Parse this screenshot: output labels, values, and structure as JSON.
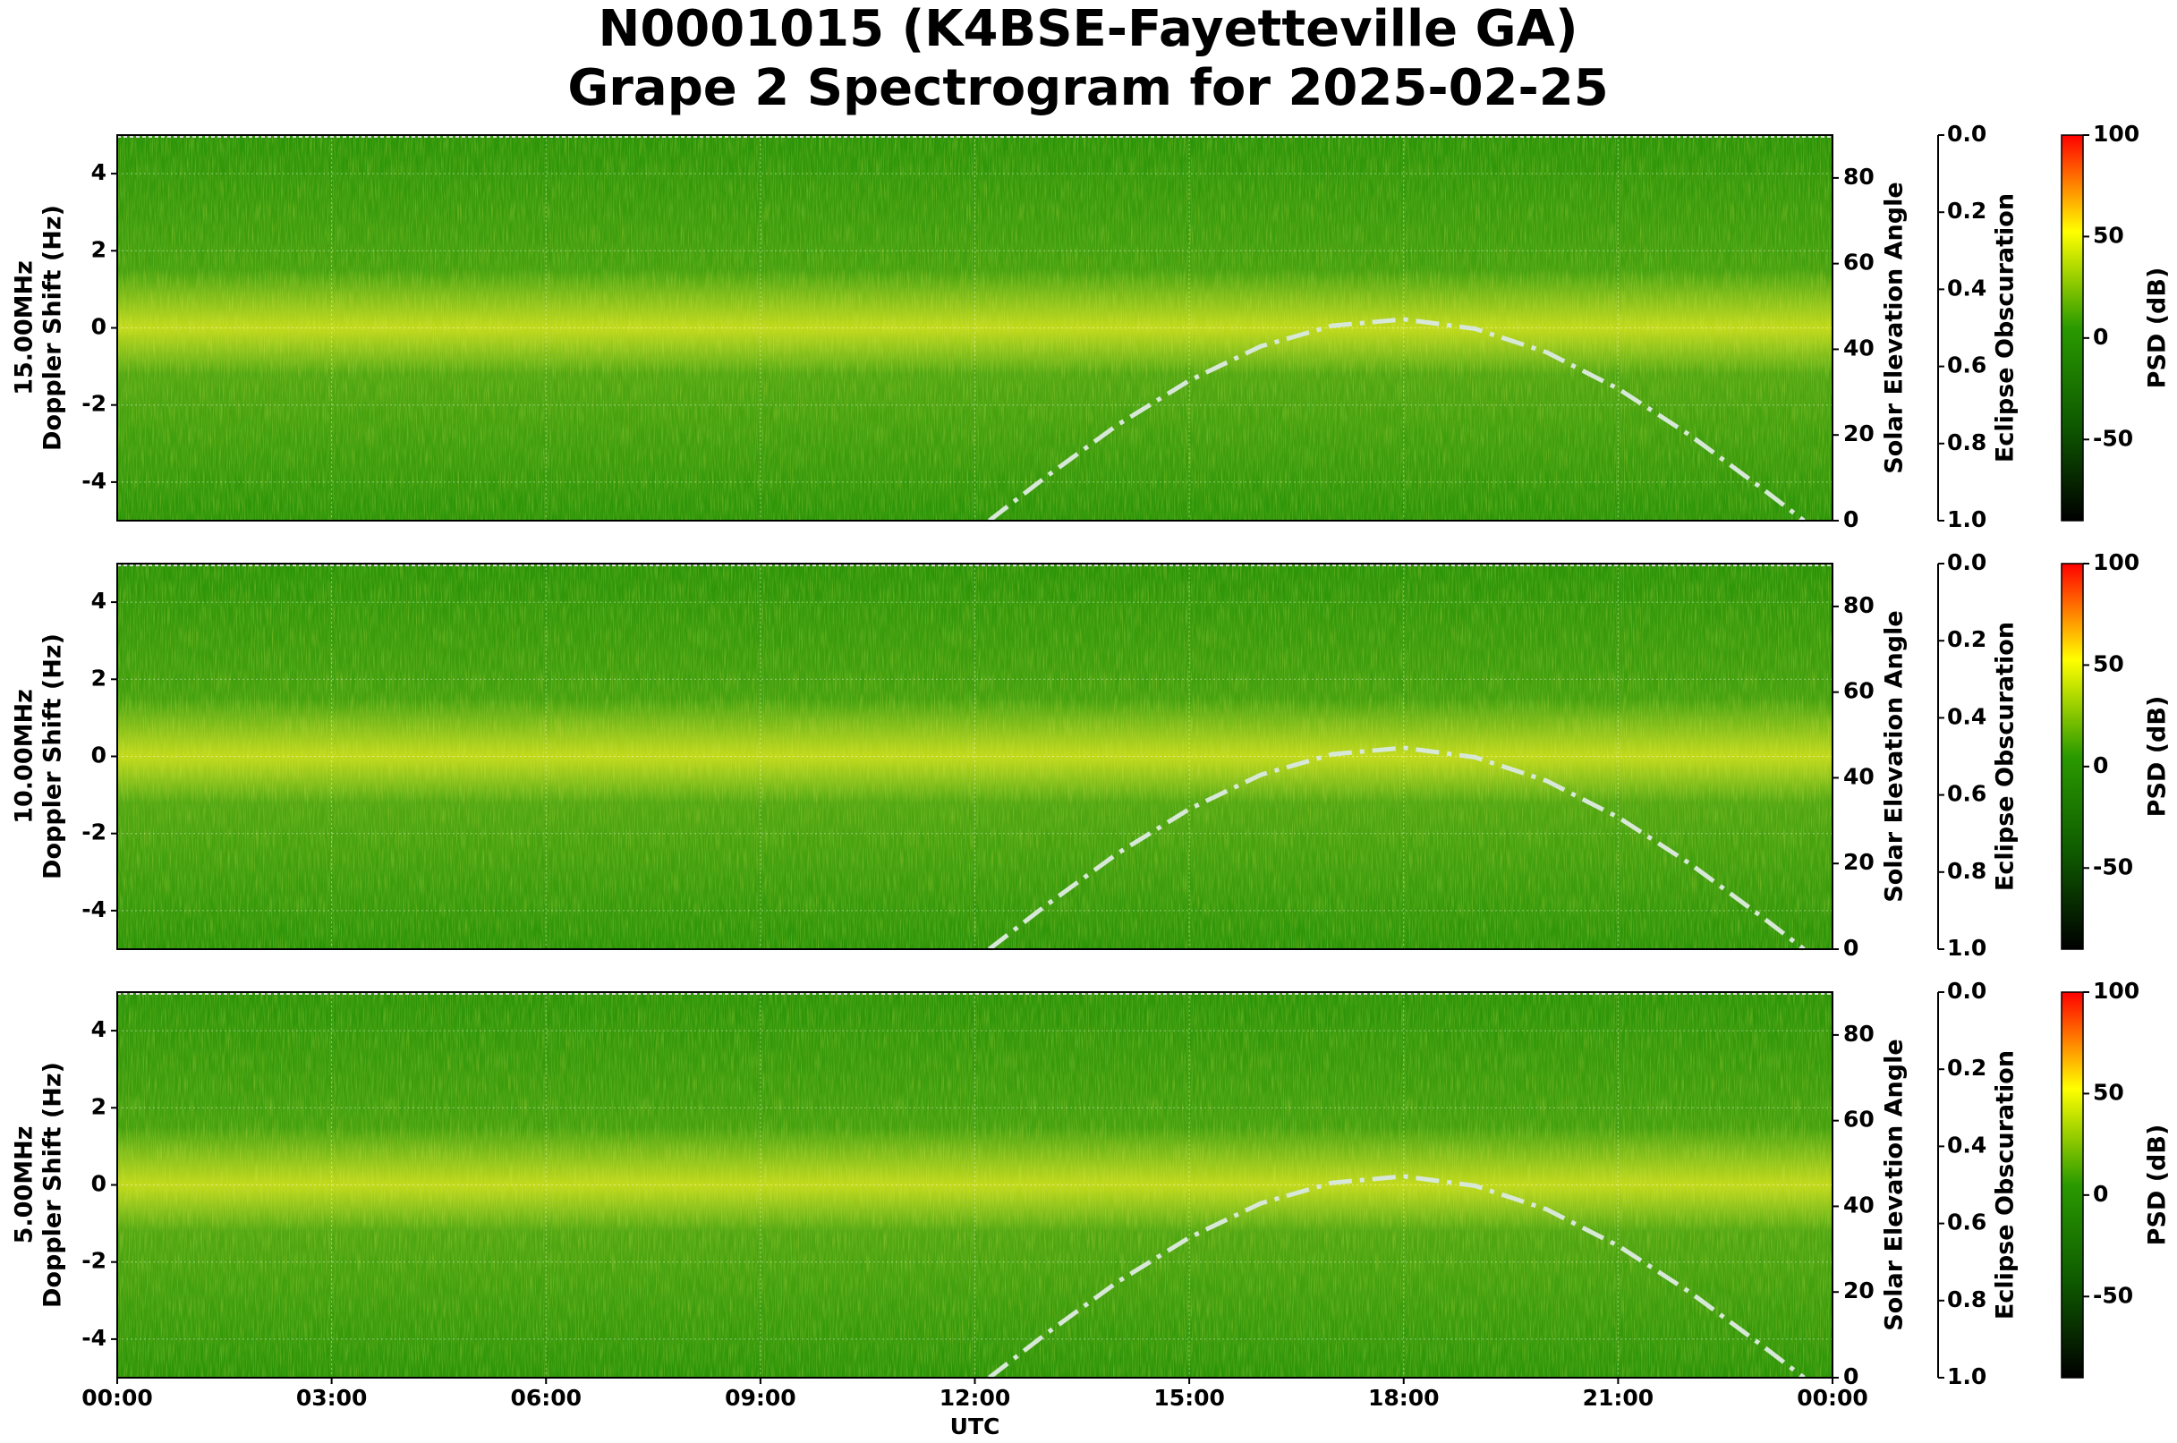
{
  "title": [
    "N0001015 (K4BSE-Fayetteville GA)",
    "Grape 2 Spectrogram for 2025-02-25"
  ],
  "chart_data": [
    {
      "type": "spectrogram",
      "ylabel": [
        "15.00MHz",
        "Doppler Shift (Hz)"
      ],
      "ylim": [
        -5,
        5
      ],
      "yticks": [
        -4,
        -2,
        0,
        2,
        4
      ],
      "grid": true,
      "y2label": "Solar Elevation Angle",
      "y2lim": [
        0,
        90
      ],
      "y2ticks": [
        0,
        20,
        40,
        60,
        80
      ],
      "y3label": "Eclipse Obscuration",
      "y3lim": [
        0,
        1
      ],
      "y3_inverted": true,
      "y3ticks": [
        {
          "value": 0,
          "label": "0.0"
        },
        {
          "value": 0.2,
          "label": "0.2"
        },
        {
          "value": 0.4,
          "label": "0.4"
        },
        {
          "value": 0.6,
          "label": "0.6"
        },
        {
          "value": 0.8,
          "label": "0.8"
        },
        {
          "value": 1,
          "label": "1.0"
        }
      ],
      "colorbar": {
        "label": "PSD (dB)",
        "lim": [
          -90,
          100
        ],
        "ticks": [
          -50,
          0,
          50,
          100
        ],
        "colors": [
          "#000000",
          "#0e5a00",
          "#2a9a00",
          "#ffff00",
          "#ff0000"
        ]
      },
      "solar_elevation": {
        "color": "#d8e8d8",
        "x": [
          12.2,
          13,
          14,
          15,
          16,
          17,
          18,
          19,
          20,
          21,
          22,
          23,
          23.6
        ],
        "values": [
          0,
          10.3,
          22.4,
          32.7,
          40.7,
          45.5,
          47,
          44.8,
          39.3,
          30.8,
          20,
          7.7,
          0
        ]
      }
    },
    {
      "type": "spectrogram",
      "ylabel": [
        "10.00MHz",
        "Doppler Shift (Hz)"
      ],
      "ylim": [
        -5,
        5
      ],
      "yticks": [
        -4,
        -2,
        0,
        2,
        4
      ],
      "grid": true,
      "y2label": "Solar Elevation Angle",
      "y2lim": [
        0,
        90
      ],
      "y2ticks": [
        0,
        20,
        40,
        60,
        80
      ],
      "y3label": "Eclipse Obscuration",
      "y3lim": [
        0,
        1
      ],
      "y3_inverted": true,
      "y3ticks": [
        {
          "value": 0,
          "label": "0.0"
        },
        {
          "value": 0.2,
          "label": "0.2"
        },
        {
          "value": 0.4,
          "label": "0.4"
        },
        {
          "value": 0.6,
          "label": "0.6"
        },
        {
          "value": 0.8,
          "label": "0.8"
        },
        {
          "value": 1,
          "label": "1.0"
        }
      ],
      "colorbar": {
        "label": "PSD (dB)",
        "lim": [
          -90,
          100
        ],
        "ticks": [
          -50,
          0,
          50,
          100
        ],
        "colors": [
          "#000000",
          "#0e5a00",
          "#2a9a00",
          "#ffff00",
          "#ff0000"
        ]
      },
      "solar_elevation": {
        "color": "#d8e8d8",
        "x": [
          12.2,
          13,
          14,
          15,
          16,
          17,
          18,
          19,
          20,
          21,
          22,
          23,
          23.6
        ],
        "values": [
          0,
          10.3,
          22.4,
          32.7,
          40.7,
          45.5,
          47,
          44.8,
          39.3,
          30.8,
          20,
          7.7,
          0
        ]
      }
    },
    {
      "type": "spectrogram",
      "ylabel": [
        "5.00MHz",
        "Doppler Shift (Hz)"
      ],
      "ylim": [
        -5,
        5
      ],
      "yticks": [
        -4,
        -2,
        0,
        2,
        4
      ],
      "grid": true,
      "y2label": "Solar Elevation Angle",
      "y2lim": [
        0,
        90
      ],
      "y2ticks": [
        0,
        20,
        40,
        60,
        80
      ],
      "y3label": "Eclipse Obscuration",
      "y3lim": [
        0,
        1
      ],
      "y3_inverted": true,
      "y3ticks": [
        {
          "value": 0,
          "label": "0.0"
        },
        {
          "value": 0.2,
          "label": "0.2"
        },
        {
          "value": 0.4,
          "label": "0.4"
        },
        {
          "value": 0.6,
          "label": "0.6"
        },
        {
          "value": 0.8,
          "label": "0.8"
        },
        {
          "value": 1,
          "label": "1.0"
        }
      ],
      "colorbar": {
        "label": "PSD (dB)",
        "lim": [
          -90,
          100
        ],
        "ticks": [
          -50,
          0,
          50,
          100
        ],
        "colors": [
          "#000000",
          "#0e5a00",
          "#2a9a00",
          "#ffff00",
          "#ff0000"
        ]
      },
      "solar_elevation": {
        "color": "#d8e8d8",
        "x": [
          12.2,
          13,
          14,
          15,
          16,
          17,
          18,
          19,
          20,
          21,
          22,
          23,
          23.6
        ],
        "values": [
          0,
          10.3,
          22.4,
          32.7,
          40.7,
          45.5,
          47,
          44.8,
          39.3,
          30.8,
          20,
          7.7,
          0
        ]
      },
      "xlabel": "UTC",
      "xlim": [
        0,
        24
      ],
      "xticks": [
        {
          "value": 0,
          "label": "00:00"
        },
        {
          "value": 3,
          "label": "03:00"
        },
        {
          "value": 6,
          "label": "06:00"
        },
        {
          "value": 9,
          "label": "09:00"
        },
        {
          "value": 12,
          "label": "12:00"
        },
        {
          "value": 15,
          "label": "15:00"
        },
        {
          "value": 18,
          "label": "18:00"
        },
        {
          "value": 21,
          "label": "21:00"
        },
        {
          "value": 24,
          "label": "00:00"
        }
      ]
    }
  ]
}
